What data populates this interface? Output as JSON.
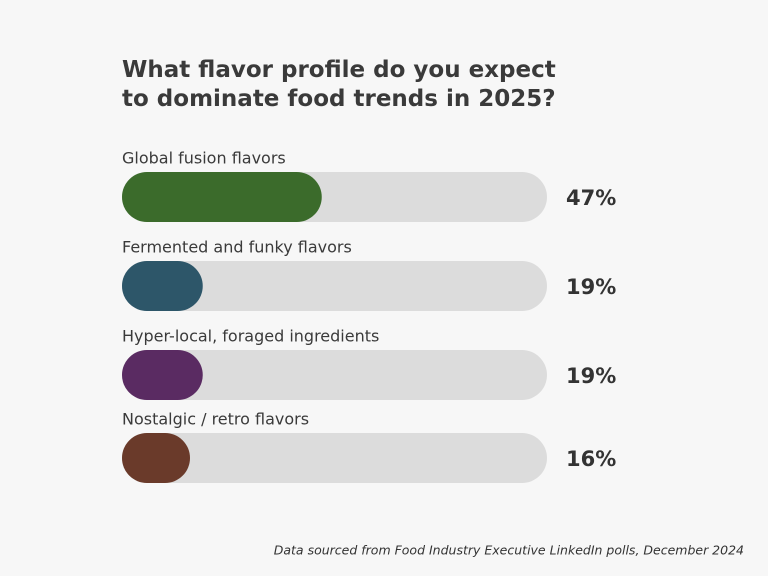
{
  "chart_data": {
    "type": "bar",
    "orientation": "horizontal",
    "title": "What flavor profile do you expect to dominate food trends in 2025?",
    "categories": [
      "Global fusion flavors",
      "Fermented and funky flavors",
      "Hyper-local, foraged ingredients",
      "Nostalgic / retro flavors"
    ],
    "values": [
      47,
      19,
      19,
      16
    ],
    "value_labels": [
      "47%",
      "19%",
      "19%",
      "16%"
    ],
    "colors": [
      "#3b6b2b",
      "#2d5669",
      "#5a2b62",
      "#6a3a2a"
    ],
    "xlim": [
      0,
      100
    ],
    "note": "Data sourced from Food Industry Executive LinkedIn polls, December 2024"
  }
}
